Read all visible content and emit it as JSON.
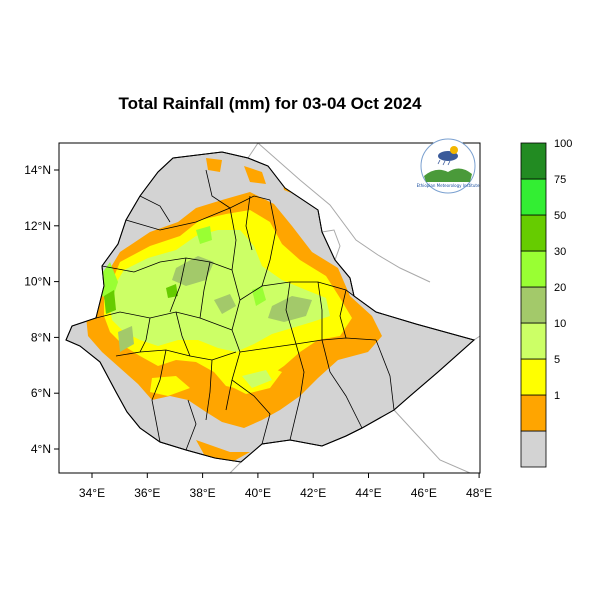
{
  "title": "Total Rainfall (mm) for 03-04 Oct 2024",
  "colors": {
    "country": "#d3d3d3",
    "border": "#000000",
    "neighbor_border": "#a9a9a9",
    "frame": "#000000"
  },
  "axes": {
    "x_ticks": [
      "34°E",
      "36°E",
      "38°E",
      "40°E",
      "42°E",
      "44°E",
      "46°E",
      "48°E"
    ],
    "y_ticks": [
      "14°N",
      "12°N",
      "10°N",
      "8°N",
      "6°N",
      "4°N"
    ]
  },
  "legend": {
    "classes": [
      {
        "color": "#d3d3d3"
      },
      {
        "color": "#ffa500",
        "label": "1"
      },
      {
        "color": "#ffff00",
        "label": "5"
      },
      {
        "color": "#ccff66",
        "label": "10"
      },
      {
        "color": "#a3c96a",
        "label": "20"
      },
      {
        "color": "#99ff33",
        "label": "30"
      },
      {
        "color": "#66cc00",
        "label": "50"
      },
      {
        "color": "#33ee33",
        "label": "75"
      },
      {
        "color": "#228b22",
        "label": "100"
      }
    ]
  },
  "logo": {
    "icon": "ethiopian-meteorology-institute-logo",
    "text": "Ethiopian Meteorology Institute"
  }
}
